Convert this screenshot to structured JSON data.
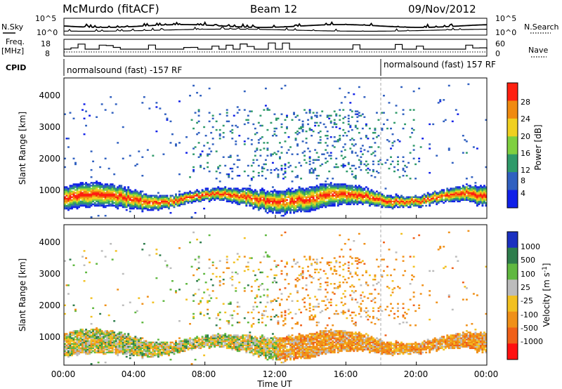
{
  "header": {
    "site": "McMurdo (fitACF)",
    "beam": "Beam 12",
    "date": "09/Nov/2012"
  },
  "noise_panel": {
    "left_label": "N.Sky",
    "right_label": "N.Search",
    "left_ticks": [
      "10^5",
      "10^0"
    ],
    "right_ticks": [
      "10^5",
      "10^0"
    ]
  },
  "freq_panel": {
    "left_label_1": "Freq.",
    "left_label_2": "[MHz]",
    "right_label": "Nave",
    "left_ticks": [
      "18",
      "8"
    ],
    "right_ticks": [
      "60",
      "0"
    ]
  },
  "cpid": {
    "label": "CPID",
    "segment_1": "normalsound (fast) -157 RF",
    "segment_2": "normalsound (fast) 157 RF"
  },
  "chart_data": [
    {
      "type": "heatmap",
      "title": "",
      "ylabel": "Slant Range [km]",
      "xlabel": "",
      "ylim": [
        180,
        4600
      ],
      "yticks": [
        "1000",
        "2000",
        "3000",
        "4000"
      ],
      "colorbar_label": "Power [dB]",
      "colorbar_ticks": [
        "4",
        "8",
        "12",
        "16",
        "20",
        "24",
        "28"
      ],
      "colorbar_colors": [
        "#1020e8",
        "#3060c0",
        "#2f9a6a",
        "#7fd040",
        "#f0d020",
        "#f08a10",
        "#ff2010"
      ],
      "features": [
        {
          "name": "main echo band",
          "x_start": "00:00",
          "x_end": "24:00",
          "range_km": [
            500,
            1200
          ],
          "power_db_peak": 30
        },
        {
          "name": "scattered echoes",
          "x_start": "08:00",
          "x_end": "20:00",
          "range_km": [
            1500,
            3500
          ],
          "power_db_peak": 18
        }
      ]
    },
    {
      "type": "heatmap",
      "title": "",
      "ylabel": "Slant Range [km]",
      "xlabel": "Time UT",
      "ylim": [
        180,
        4600
      ],
      "yticks": [
        "1000",
        "2000",
        "3000",
        "4000"
      ],
      "xticks": [
        "00:00",
        "04:00",
        "08:00",
        "12:00",
        "16:00",
        "20:00",
        "00:00"
      ],
      "colorbar_label": "Velocity [m s",
      "colorbar_label_sup": "-1",
      "colorbar_label_end": "]",
      "colorbar_ticks": [
        "1000",
        "500",
        "100",
        "25",
        "-25",
        "-100",
        "-500",
        "-1000"
      ],
      "colorbar_colors": [
        "#1a30c0",
        "#2e7d4c",
        "#60b840",
        "#bcbcbc",
        "#f2c020",
        "#f09018",
        "#f06018",
        "#ff1010"
      ],
      "features": [
        {
          "name": "mixed-sign band",
          "x_start": "00:00",
          "x_end": "12:00",
          "range_km": [
            500,
            1400
          ],
          "velocity_ms": [
            -100,
            100
          ]
        },
        {
          "name": "negative-velocity band",
          "x_start": "12:00",
          "x_end": "24:00",
          "range_km": [
            500,
            2000
          ],
          "velocity_ms": [
            -100,
            -25
          ]
        }
      ]
    }
  ],
  "ticks_x": [
    "00:00",
    "04:00",
    "08:00",
    "12:00",
    "16:00",
    "20:00",
    "00:00"
  ],
  "xlabel": "Time UT"
}
